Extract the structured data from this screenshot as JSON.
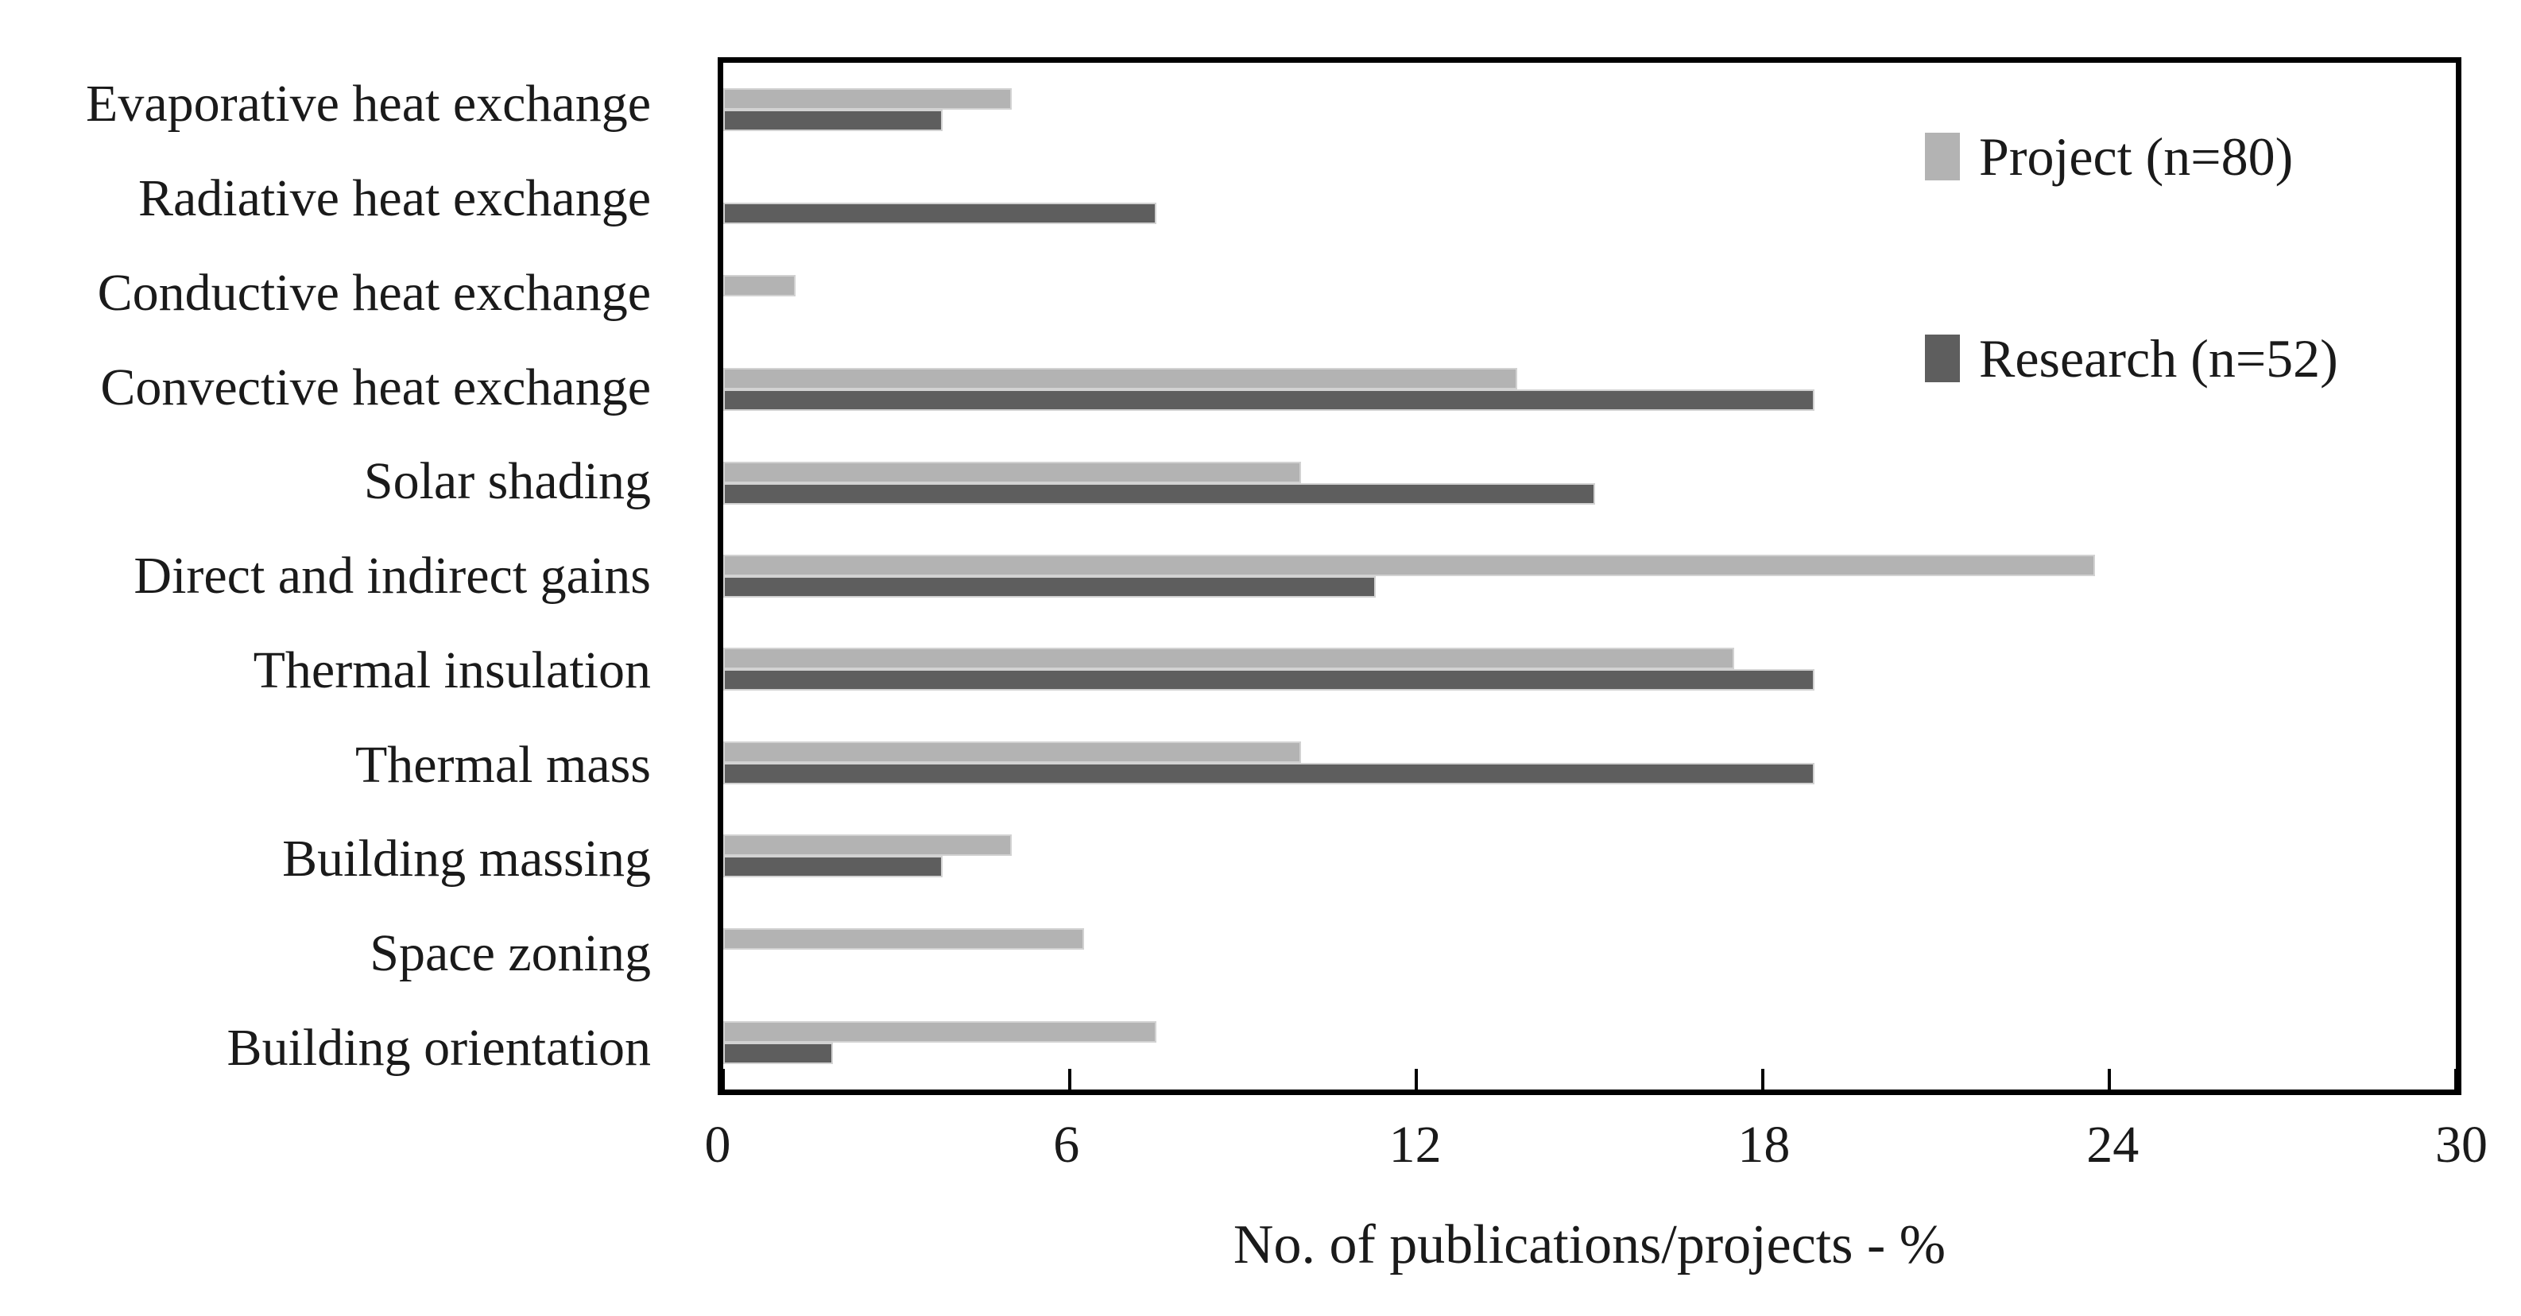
{
  "chart_data": {
    "type": "bar",
    "orientation": "horizontal",
    "categories": [
      "Evaporative heat exchange",
      "Radiative heat exchange",
      "Conductive heat exchange",
      "Convective heat exchange",
      "Solar shading",
      "Direct and indirect gains",
      "Thermal insulation",
      "Thermal mass",
      "Building massing",
      "Space zoning",
      "Building orientation"
    ],
    "series": [
      {
        "name": "Project (n=80)",
        "color": "#b3b3b3",
        "values": [
          5,
          0,
          1.25,
          13.75,
          10,
          23.75,
          17.5,
          10,
          5,
          6.25,
          7.5
        ]
      },
      {
        "name": "Research (n=52)",
        "color": "#5e5e5e",
        "values": [
          3.8,
          7.5,
          0,
          18.9,
          15.1,
          11.3,
          18.9,
          18.9,
          3.8,
          0,
          1.9
        ]
      }
    ],
    "xlabel": "No. of publications/projects - %",
    "xlim": [
      0,
      30
    ],
    "xticks": [
      0,
      6,
      12,
      18,
      24,
      30
    ],
    "grid": false,
    "legend_position": "top-right",
    "frame_color": "#000000",
    "bar_outline_color": "#d2d2d2",
    "text_color": "#1a1a1a",
    "background_color": "#ffffff"
  }
}
